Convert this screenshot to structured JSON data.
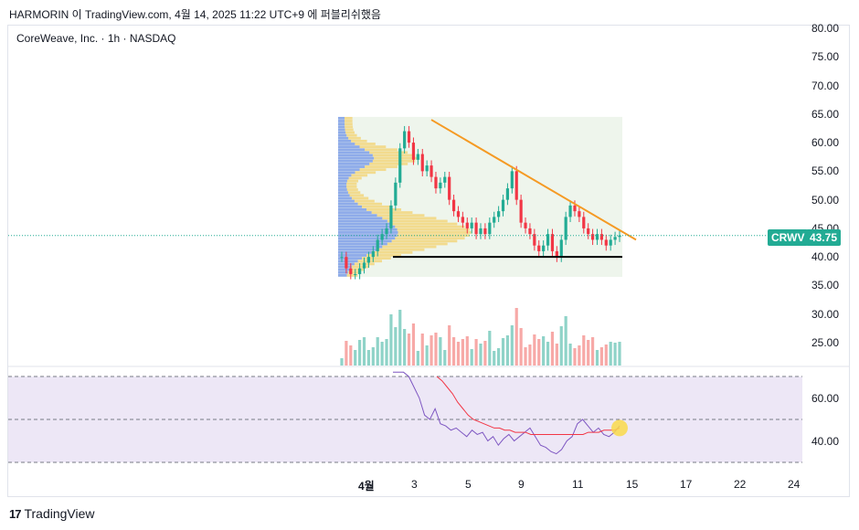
{
  "header": {
    "text": "HARMORIN 이 TradingView.com, 4월 14, 2025 11:22 UTC+9 에 퍼블리쉬했음"
  },
  "symbol": {
    "label": "CoreWeave, Inc. · 1h · NASDAQ"
  },
  "price_badge": {
    "ticker": "CRWV",
    "price": "43.75",
    "ticker_color": "#22ab94",
    "price_color": "#22ab94"
  },
  "footer": {
    "brand": "TradingView",
    "logo": "17"
  },
  "colors": {
    "up": "#22ab94",
    "down": "#f23645",
    "trendline": "#f59a23",
    "support": "#000000",
    "rsi_line": "#7e57c2",
    "rsi_ma": "#f23645",
    "rsi_band": "#ede7f6",
    "highlight": "#f9d94a"
  },
  "chart_data": [
    {
      "type": "candlestick",
      "title": "CoreWeave, Inc. · 1h · NASDAQ",
      "y_ticks": [
        "80.00",
        "75.00",
        "70.00",
        "65.00",
        "60.00",
        "55.00",
        "50.00",
        "45.00",
        "40.00",
        "35.00",
        "30.00",
        "25.00"
      ],
      "ylim": [
        21,
        81
      ],
      "x_ticks": [
        "4월",
        "3",
        "5",
        "9",
        "11",
        "15",
        "17",
        "22",
        "24"
      ],
      "last_price": 43.75,
      "close_series": [
        40,
        38,
        37,
        37,
        38,
        39,
        40,
        41,
        43,
        44,
        45,
        49,
        53,
        59,
        62,
        60,
        57,
        58,
        55,
        56,
        54,
        52,
        53,
        54,
        50,
        48,
        47,
        46,
        45,
        46,
        44,
        45,
        44,
        46,
        47,
        48,
        50,
        52,
        55,
        50,
        46,
        45,
        44,
        42,
        41,
        42,
        44,
        41,
        40,
        43,
        47,
        49,
        48,
        47,
        45,
        44,
        43,
        44,
        43,
        42,
        43,
        43.5,
        43.75
      ],
      "trendline": [
        [
          64,
          0.33
        ],
        [
          43,
          1.0
        ]
      ],
      "support_level": 40,
      "volume_profile": true
    },
    {
      "type": "line",
      "title": "RSI",
      "y_ticks": [
        "60.00",
        "40.00"
      ],
      "ylim": [
        28,
        72
      ],
      "band": [
        30,
        70
      ],
      "mid": 50,
      "rsi": [
        72,
        74,
        78,
        70,
        65,
        60,
        52,
        50,
        55,
        48,
        47,
        45,
        46,
        44,
        42,
        45,
        43,
        44,
        40,
        42,
        38,
        41,
        43,
        40,
        42,
        44,
        46,
        42,
        38,
        37,
        35,
        34,
        36,
        40,
        42,
        48,
        50,
        47,
        44,
        46,
        43,
        42,
        44,
        47
      ],
      "rsi_ma": [
        70,
        68,
        65,
        62,
        58,
        55,
        52,
        50,
        49,
        48,
        47,
        46,
        46,
        45,
        45,
        44,
        44,
        44,
        43,
        43,
        43,
        43,
        43,
        43,
        43,
        43,
        43,
        43,
        43,
        44,
        44,
        44,
        45,
        45,
        45,
        46
      ]
    }
  ]
}
